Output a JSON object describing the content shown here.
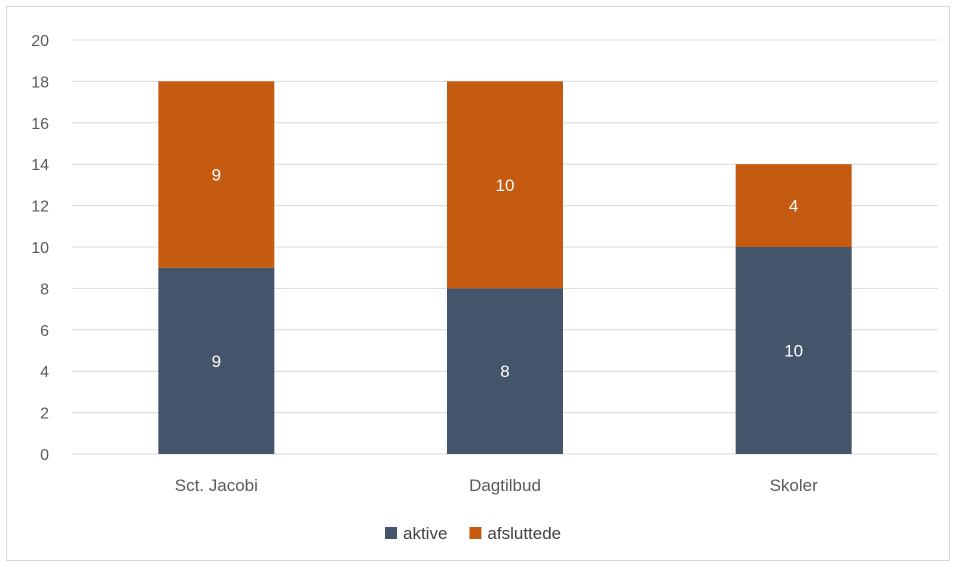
{
  "chart_data": {
    "type": "bar",
    "stacked": true,
    "categories": [
      "Sct. Jacobi",
      "Dagtilbud",
      "Skoler"
    ],
    "series": [
      {
        "name": "aktive",
        "values": [
          9,
          8,
          10
        ],
        "color": "#44546a"
      },
      {
        "name": "afsluttede",
        "values": [
          9,
          10,
          4
        ],
        "color": "#c55a11"
      }
    ],
    "ylim": [
      0,
      20
    ],
    "yticks": [
      0,
      2,
      4,
      6,
      8,
      10,
      12,
      14,
      16,
      18,
      20
    ],
    "grid": true,
    "data_labels": true,
    "legend_position": "bottom"
  }
}
